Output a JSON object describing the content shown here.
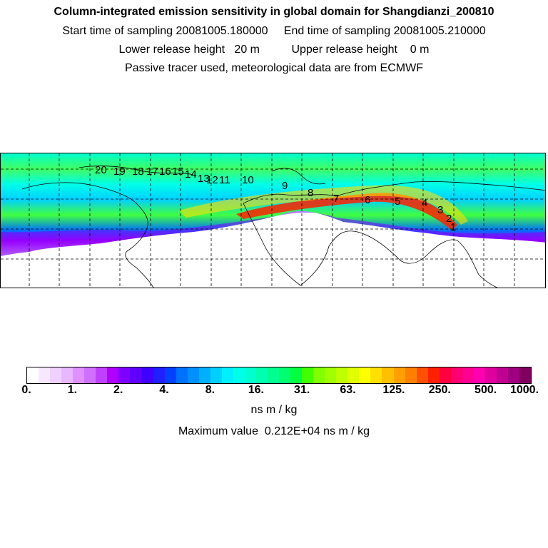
{
  "header": {
    "title": "Column-integrated emission sensitivity in global domain for Shangdianzi_200810",
    "line2": "Start time of sampling 20081005.180000     End time of sampling 20081005.210000",
    "line3": "Lower release height   20 m          Upper release height    0 m",
    "line4": "Passive tracer used, meteorological data are from ECMWF"
  },
  "map": {
    "trajectory_labels": [
      "1",
      "2",
      "3",
      "4",
      "5",
      "6",
      "7",
      "8",
      "9",
      "10",
      "11",
      "12",
      "13",
      "14",
      "15",
      "16",
      "17",
      "18",
      "19",
      "20"
    ]
  },
  "colorbar": {
    "colors": [
      "#ffffff",
      "#f8e8ff",
      "#f0d0ff",
      "#e8b8ff",
      "#e090ff",
      "#d070ff",
      "#c040ff",
      "#b000ff",
      "#8000ff",
      "#6000ff",
      "#4000ff",
      "#2020ff",
      "#0040ff",
      "#0070ff",
      "#0090ff",
      "#00b0ff",
      "#00d0ff",
      "#00f0ff",
      "#00ffe8",
      "#00ffd0",
      "#00ffb0",
      "#00ff90",
      "#00ff70",
      "#00ff40",
      "#40ff00",
      "#80ff00",
      "#a0ff00",
      "#c0ff00",
      "#e0ff00",
      "#ffff00",
      "#ffe000",
      "#ffc000",
      "#ffa000",
      "#ff8000",
      "#ff5000",
      "#ff2000",
      "#ff0040",
      "#ff0070",
      "#ff0090",
      "#ff00b0",
      "#e000a0",
      "#c00090",
      "#a00080",
      "#800060"
    ],
    "tick_labels": [
      "0.",
      "1.",
      "2.",
      "4.",
      "8.",
      "16.",
      "31.",
      "63.",
      "125.",
      "250.",
      "500.",
      "1000."
    ]
  },
  "units": "ns m / kg",
  "maximum": "Maximum value  0.212E+04 ns m / kg"
}
